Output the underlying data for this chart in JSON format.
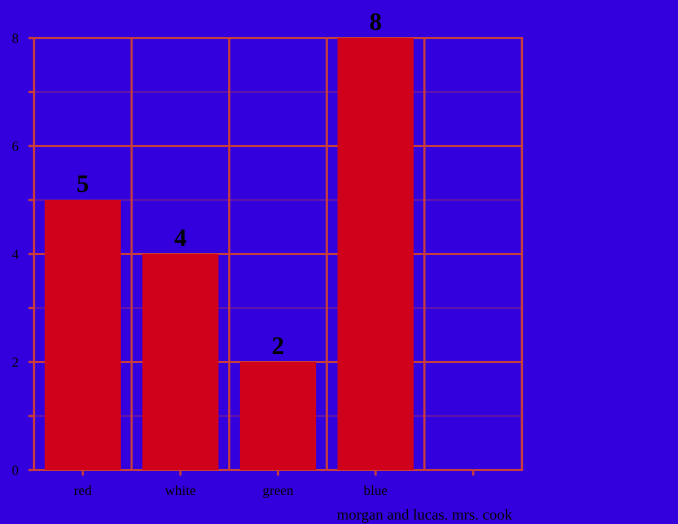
{
  "chart_data": {
    "type": "bar",
    "xlabel": "morgan and lucas. mrs. cook",
    "categories": [
      "red",
      "white",
      "green",
      "blue",
      null
    ],
    "values": [
      5,
      4,
      2,
      8,
      null
    ],
    "color": "#d0021b",
    "ylim": [
      0,
      8
    ],
    "yticks": [
      0,
      {
        "value": 1,
        "label": null
      },
      2,
      {
        "value": 3,
        "label": null
      },
      4,
      {
        "value": 5,
        "label": null
      },
      6,
      {
        "value": 7,
        "label": null
      },
      8
    ],
    "grid": true,
    "data_labels": true
  }
}
